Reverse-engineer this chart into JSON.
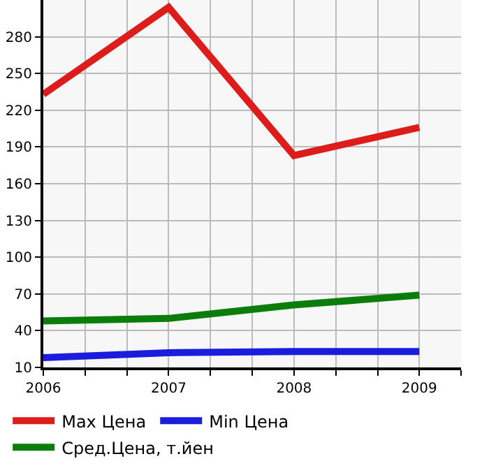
{
  "chart_data": {
    "type": "line",
    "x": [
      2006,
      2007,
      2008,
      2009
    ],
    "series": [
      {
        "name": "Max Цена",
        "color": "#dd1c1c",
        "values": [
          233,
          304,
          183,
          206
        ]
      },
      {
        "name": "Min Цена",
        "color": "#1c1cdd",
        "values": [
          18,
          22,
          23,
          23
        ]
      },
      {
        "name": "Сред.Цена, т.йен",
        "color": "#0a7d0a",
        "values": [
          48,
          50,
          61,
          69
        ]
      }
    ],
    "xlim": [
      2006,
      2009.333
    ],
    "xticks": [
      2006,
      {
        "value": 2006.333,
        "label": null
      },
      {
        "value": 2006.667,
        "label": null
      },
      2007,
      {
        "value": 2007.333,
        "label": null
      },
      {
        "value": 2007.667,
        "label": null
      },
      2008,
      {
        "value": 2008.333,
        "label": null
      },
      {
        "value": 2008.667,
        "label": null
      },
      2009,
      {
        "value": 2009.333,
        "label": null
      }
    ],
    "ylim": [
      10,
      310
    ],
    "yticks": [
      10,
      40,
      70,
      100,
      130,
      160,
      190,
      220,
      250,
      280
    ],
    "grid": true,
    "legend": "bottom",
    "marker": "none",
    "line_style": "solid"
  }
}
